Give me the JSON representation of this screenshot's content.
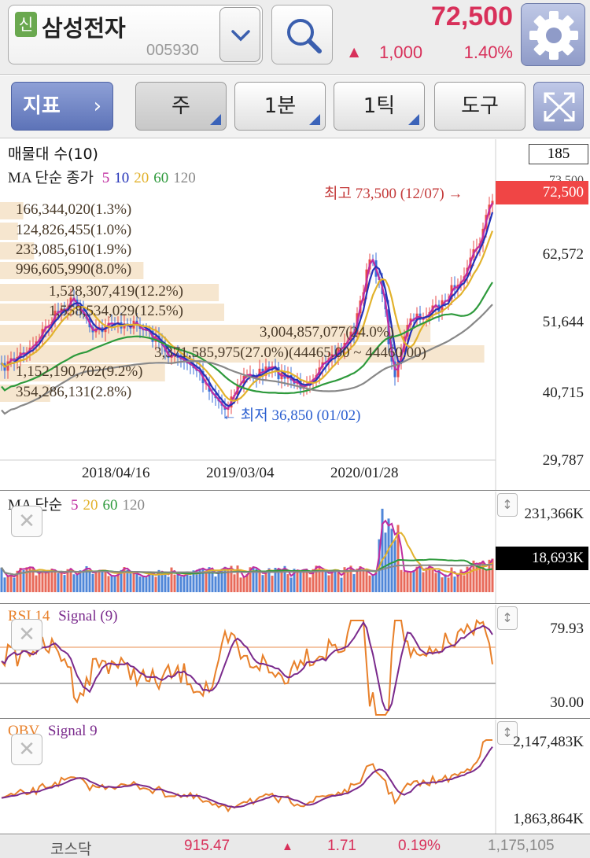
{
  "header": {
    "badge": "신",
    "stock_name": "삼성전자",
    "stock_code": "005930",
    "price": "72,500",
    "change_arrow": "▲",
    "change_amount": "1,000",
    "change_percent": "1.40%",
    "up_color": "#d8305a"
  },
  "toolbar": {
    "indicator_label": "지표",
    "indicator_chevron": "›",
    "period_label": "주",
    "minute_label": "1분",
    "tick_label": "1틱",
    "tools_label": "도구"
  },
  "main_chart": {
    "title": "매물대 수(10)",
    "ma_prefix": "MA 단순 종가",
    "ma_periods": [
      "5",
      "10",
      "20",
      "60",
      "120"
    ],
    "ma_colors": [
      "#c02ca0",
      "#2433b8",
      "#e2b22c",
      "#2e9a3c",
      "#888888"
    ],
    "top_value": "185",
    "price_tag": "72,500",
    "y_labels": [
      "62,572",
      "51,644",
      "40,715",
      "29,787"
    ],
    "y_label_top_partial": "73,500",
    "x_labels": [
      "2018/04/16",
      "2019/03/04",
      "2020/01/28"
    ],
    "high_marker": "최고 73,500 (12/07) →",
    "low_marker": "← 최저 36,850 (01/02)",
    "volume_profile": [
      {
        "label": "166,344,020(1.3%)",
        "pct": 1.3
      },
      {
        "label": "124,826,455(1.0%)",
        "pct": 1.0
      },
      {
        "label": "233,085,610(1.9%)",
        "pct": 1.9
      },
      {
        "label": "996,605,990(8.0%)",
        "pct": 8.0
      },
      {
        "label": "1,528,307,419(12.2%)",
        "pct": 12.2
      },
      {
        "label": "1,558,534,029(12.5%)",
        "pct": 12.5
      },
      {
        "label": "3,004,857,077(24.0%)",
        "pct": 24.0
      },
      {
        "label": "3,371,585,975(27.0%)(44465.00 ~ 44460.00)",
        "pct": 27.0
      },
      {
        "label": "1,152,190,702(9.2%)",
        "pct": 9.2
      },
      {
        "label": "354,286,131(2.8%)",
        "pct": 2.8
      }
    ]
  },
  "volume_chart": {
    "ma_prefix": "MA 단순",
    "ma_periods": [
      "5",
      "20",
      "60",
      "120"
    ],
    "ma_colors": [
      "#c02ca0",
      "#e2b22c",
      "#2e9a3c",
      "#888888"
    ],
    "top_label": "231,366K",
    "current_tag": "18,693K"
  },
  "rsi_chart": {
    "name": "RSI 14",
    "signal": "Signal (9)",
    "upper": "79.93",
    "lower": "30.00",
    "line_color": "#e8802a",
    "signal_color": "#7a2a8c"
  },
  "obv_chart": {
    "name": "OBV",
    "signal": "Signal 9",
    "upper": "2,147,483K",
    "lower": "1,863,864K"
  },
  "footer": {
    "market": "코스닥",
    "index": "915.47",
    "arrow": "▲",
    "change": "1.71",
    "percent": "0.19%",
    "volume": "1,175,105"
  }
}
